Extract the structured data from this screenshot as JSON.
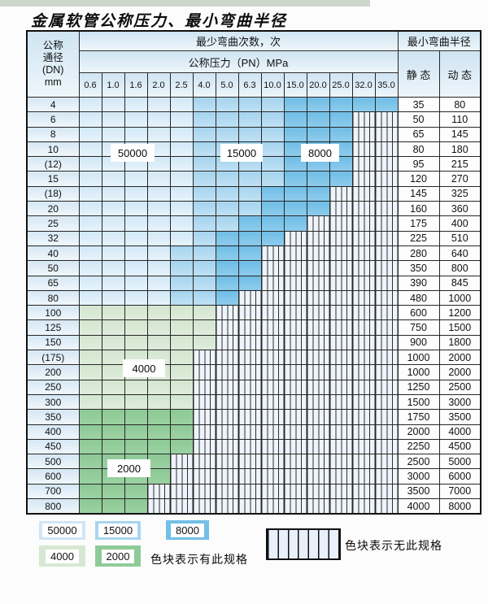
{
  "page": {
    "title": "金属软管公称压力、最小弯曲半径"
  },
  "table": {
    "dn_header_lines": [
      "公称",
      "通径",
      "(DN)",
      "mm"
    ],
    "bend_cycles_header": "最少弯曲次数，次",
    "pressure_header": "公称压力（PN）MPa",
    "bend_radius_header": "最小弯曲半径",
    "static_header": "静 态",
    "dynamic_header": "动 态",
    "pressure_labels": [
      "0.6",
      "1.0",
      "1.6",
      "2.0",
      "2.5",
      "4.0",
      "5.0",
      "6.3",
      "10.0",
      "15.0",
      "20.0",
      "25.0",
      "32.0",
      "35.0"
    ]
  },
  "chart_data": {
    "type": "table",
    "title": "金属软管公称压力、最小弯曲半径",
    "pressure_MPa": [
      0.6,
      1.0,
      1.6,
      2.0,
      2.5,
      4.0,
      5.0,
      6.3,
      10.0,
      15.0,
      20.0,
      25.0,
      32.0,
      35.0
    ],
    "cycle_values_by_fill": {
      "blue": [
        50000,
        15000,
        8000
      ],
      "green-light": 4000,
      "green-dark": 2000
    },
    "bounds_meaning": "bounds are inclusive end indexes into pressure_MPa for each successive shade; columns past the last bound have no specification (hatched)",
    "rows": [
      {
        "dn": "4",
        "fill": "blue",
        "bounds": [
          4,
          8,
          13
        ],
        "static": "35",
        "dynamic": "80"
      },
      {
        "dn": "6",
        "fill": "blue",
        "bounds": [
          4,
          8,
          11
        ],
        "static": "50",
        "dynamic": "110"
      },
      {
        "dn": "8",
        "fill": "blue",
        "bounds": [
          4,
          8,
          11
        ],
        "static": "65",
        "dynamic": "145"
      },
      {
        "dn": "10",
        "fill": "blue",
        "bounds": [
          4,
          8,
          11
        ],
        "static": "80",
        "dynamic": "180"
      },
      {
        "dn": "(12)",
        "fill": "blue",
        "bounds": [
          4,
          8,
          11
        ],
        "static": "95",
        "dynamic": "215"
      },
      {
        "dn": "15",
        "fill": "blue",
        "bounds": [
          4,
          8,
          11
        ],
        "static": "120",
        "dynamic": "270"
      },
      {
        "dn": "(18)",
        "fill": "blue",
        "bounds": [
          4,
          7,
          10
        ],
        "static": "145",
        "dynamic": "325"
      },
      {
        "dn": "20",
        "fill": "blue",
        "bounds": [
          4,
          7,
          10
        ],
        "static": "160",
        "dynamic": "360"
      },
      {
        "dn": "25",
        "fill": "blue",
        "bounds": [
          4,
          6,
          9
        ],
        "static": "175",
        "dynamic": "400"
      },
      {
        "dn": "32",
        "fill": "blue",
        "bounds": [
          4,
          5,
          8
        ],
        "static": "225",
        "dynamic": "510"
      },
      {
        "dn": "40",
        "fill": "blue",
        "bounds": [
          3,
          5,
          7
        ],
        "static": "280",
        "dynamic": "640"
      },
      {
        "dn": "50",
        "fill": "blue",
        "bounds": [
          3,
          5,
          7
        ],
        "static": "350",
        "dynamic": "800"
      },
      {
        "dn": "65",
        "fill": "blue",
        "bounds": [
          3,
          5,
          7
        ],
        "static": "390",
        "dynamic": "845"
      },
      {
        "dn": "80",
        "fill": "blue",
        "bounds": [
          3,
          5,
          6
        ],
        "static": "480",
        "dynamic": "1000"
      },
      {
        "dn": "100",
        "fill": "green-light",
        "bounds": [
          5
        ],
        "static": "600",
        "dynamic": "1200"
      },
      {
        "dn": "125",
        "fill": "green-light",
        "bounds": [
          5
        ],
        "static": "750",
        "dynamic": "1500"
      },
      {
        "dn": "150",
        "fill": "green-light",
        "bounds": [
          5
        ],
        "static": "900",
        "dynamic": "1800"
      },
      {
        "dn": "(175)",
        "fill": "green-light",
        "bounds": [
          4
        ],
        "static": "1000",
        "dynamic": "2000"
      },
      {
        "dn": "200",
        "fill": "green-light",
        "bounds": [
          4
        ],
        "static": "1000",
        "dynamic": "2000"
      },
      {
        "dn": "250",
        "fill": "green-light",
        "bounds": [
          4
        ],
        "static": "1250",
        "dynamic": "2500"
      },
      {
        "dn": "300",
        "fill": "green-light",
        "bounds": [
          4
        ],
        "static": "1500",
        "dynamic": "3000"
      },
      {
        "dn": "350",
        "fill": "green-dark",
        "bounds": [
          4
        ],
        "static": "1750",
        "dynamic": "3500"
      },
      {
        "dn": "400",
        "fill": "green-dark",
        "bounds": [
          4
        ],
        "static": "2000",
        "dynamic": "4000"
      },
      {
        "dn": "450",
        "fill": "green-dark",
        "bounds": [
          4
        ],
        "static": "2250",
        "dynamic": "4500"
      },
      {
        "dn": "500",
        "fill": "green-dark",
        "bounds": [
          3
        ],
        "static": "2500",
        "dynamic": "5000"
      },
      {
        "dn": "600",
        "fill": "green-dark",
        "bounds": [
          3
        ],
        "static": "3000",
        "dynamic": "6000"
      },
      {
        "dn": "700",
        "fill": "green-dark",
        "bounds": [
          2
        ],
        "static": "3500",
        "dynamic": "7000"
      },
      {
        "dn": "800",
        "fill": "green-dark",
        "bounds": [
          2
        ],
        "static": "4000",
        "dynamic": "8000"
      }
    ]
  },
  "overlay_labels": [
    {
      "id": "label-50000",
      "text": "50000"
    },
    {
      "id": "label-15000",
      "text": "15000"
    },
    {
      "id": "label-8000",
      "text": "8000"
    },
    {
      "id": "label-4000",
      "text": "4000"
    },
    {
      "id": "label-2000",
      "text": "2000"
    }
  ],
  "legend": {
    "swatches": [
      {
        "label": "50000",
        "color": "#cfe6f7"
      },
      {
        "label": "15000",
        "color": "#a8d5ef"
      },
      {
        "label": "8000",
        "color": "#72bfe7"
      },
      {
        "label": "4000",
        "color": "#d6e8d2"
      },
      {
        "label": "2000",
        "color": "#8fcb98"
      }
    ],
    "has_spec_text": "色块表示有此规格",
    "no_spec_text": "色块表示无此规格"
  },
  "colors": {
    "blue_50000": "#d9ecf9",
    "blue_15000": "#a9d6ef",
    "blue_8000": "#74c0e8",
    "green_4000": "#d7e8d3",
    "green_2000": "#90cc99",
    "hatch_bg": "#eef4fb"
  }
}
